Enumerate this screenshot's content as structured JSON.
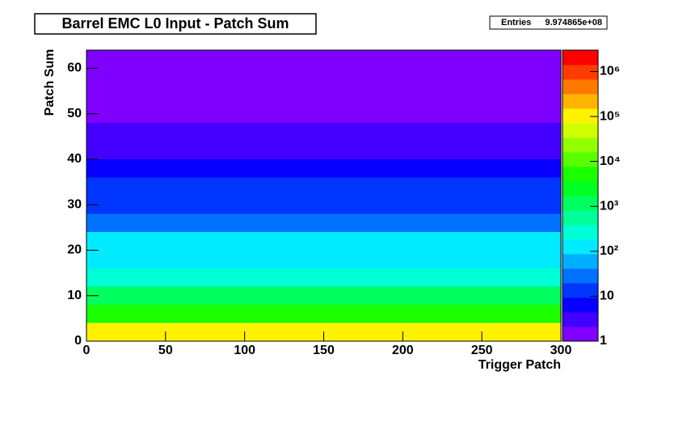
{
  "chart_data": {
    "type": "heatmap",
    "title": "Barrel EMC L0 Input - Patch Sum",
    "stats": {
      "name": "Entries",
      "entries": {
        "value": 997486500,
        "label": "9.974865e+08"
      }
    },
    "x_label": "Trigger Patch",
    "y_label": "Patch Sum",
    "xlim": [
      0,
      300
    ],
    "xticks": [
      0,
      50,
      100,
      150,
      200,
      250,
      300
    ],
    "ylim": [
      0,
      64
    ],
    "yticks": [
      0,
      10,
      20,
      30,
      40,
      50,
      60
    ],
    "y_bins": [
      0,
      4,
      8,
      12,
      16,
      20,
      24,
      28,
      32,
      36,
      40,
      44,
      48,
      52,
      56,
      60,
      64
    ],
    "values": [
      100000,
      5000,
      1000,
      300,
      150,
      80,
      30,
      15,
      8,
      4,
      2,
      1.5,
      1,
      1,
      1,
      1
    ],
    "zlim": [
      1,
      3000000
    ],
    "zlog": true,
    "zticks": [
      {
        "value": 1,
        "label": "1"
      },
      {
        "value": 10,
        "label": "10"
      },
      {
        "value": 100,
        "label": "10²"
      },
      {
        "value": 1000,
        "label": "10³"
      },
      {
        "value": 10000,
        "label": "10⁴"
      },
      {
        "value": 100000,
        "label": "10⁵"
      },
      {
        "value": 1000000,
        "label": "10⁶"
      }
    ]
  }
}
